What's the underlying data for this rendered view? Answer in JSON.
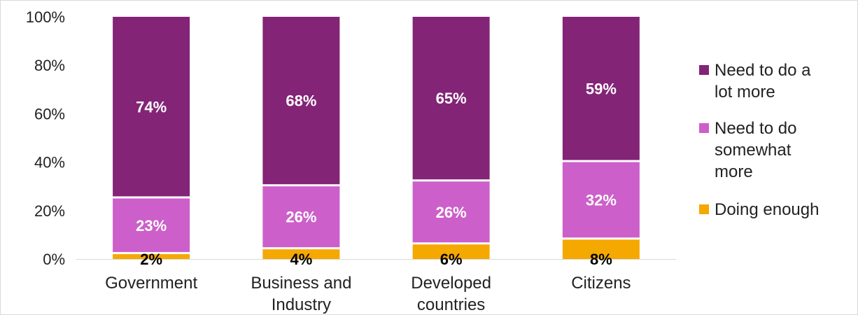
{
  "chart_data": {
    "type": "bar",
    "stacked": true,
    "categories": [
      "Government",
      "Business and Industry",
      "Developed countries",
      "Citizens"
    ],
    "category_lines": [
      [
        "Government"
      ],
      [
        "Business and",
        "Industry"
      ],
      [
        "Developed",
        "countries"
      ],
      [
        "Citizens"
      ]
    ],
    "series": [
      {
        "name": "Doing enough",
        "values": [
          2,
          4,
          6,
          8
        ],
        "labels": [
          "2%",
          "4%",
          "6%",
          "8%"
        ],
        "color": "#f5a800",
        "label_color": "#000000"
      },
      {
        "name": "Need to do somewhat more",
        "values": [
          23,
          26,
          26,
          32
        ],
        "labels": [
          "23%",
          "26%",
          "26%",
          "32%"
        ],
        "color": "#cc5fca",
        "label_color": "#ffffff"
      },
      {
        "name": "Need to do a lot more",
        "values": [
          74,
          68,
          65,
          59
        ],
        "labels": [
          "74%",
          "68%",
          "65%",
          "59%"
        ],
        "color": "#832476",
        "label_color": "#ffffff"
      }
    ],
    "legend": [
      {
        "series": "Need to do a lot more",
        "lines": [
          "Need to do a",
          "lot more"
        ],
        "color": "#832476"
      },
      {
        "series": "Need to do somewhat more",
        "lines": [
          "Need to do",
          "somewhat",
          "more"
        ],
        "color": "#cc5fca"
      },
      {
        "series": "Doing enough",
        "lines": [
          "Doing enough"
        ],
        "color": "#f5a800"
      }
    ],
    "y_ticks": [
      "0%",
      "20%",
      "40%",
      "60%",
      "80%",
      "100%"
    ],
    "ylim": [
      0,
      100
    ],
    "title": "",
    "xlabel": "",
    "ylabel": "",
    "grid": false,
    "legend_position": "right"
  }
}
